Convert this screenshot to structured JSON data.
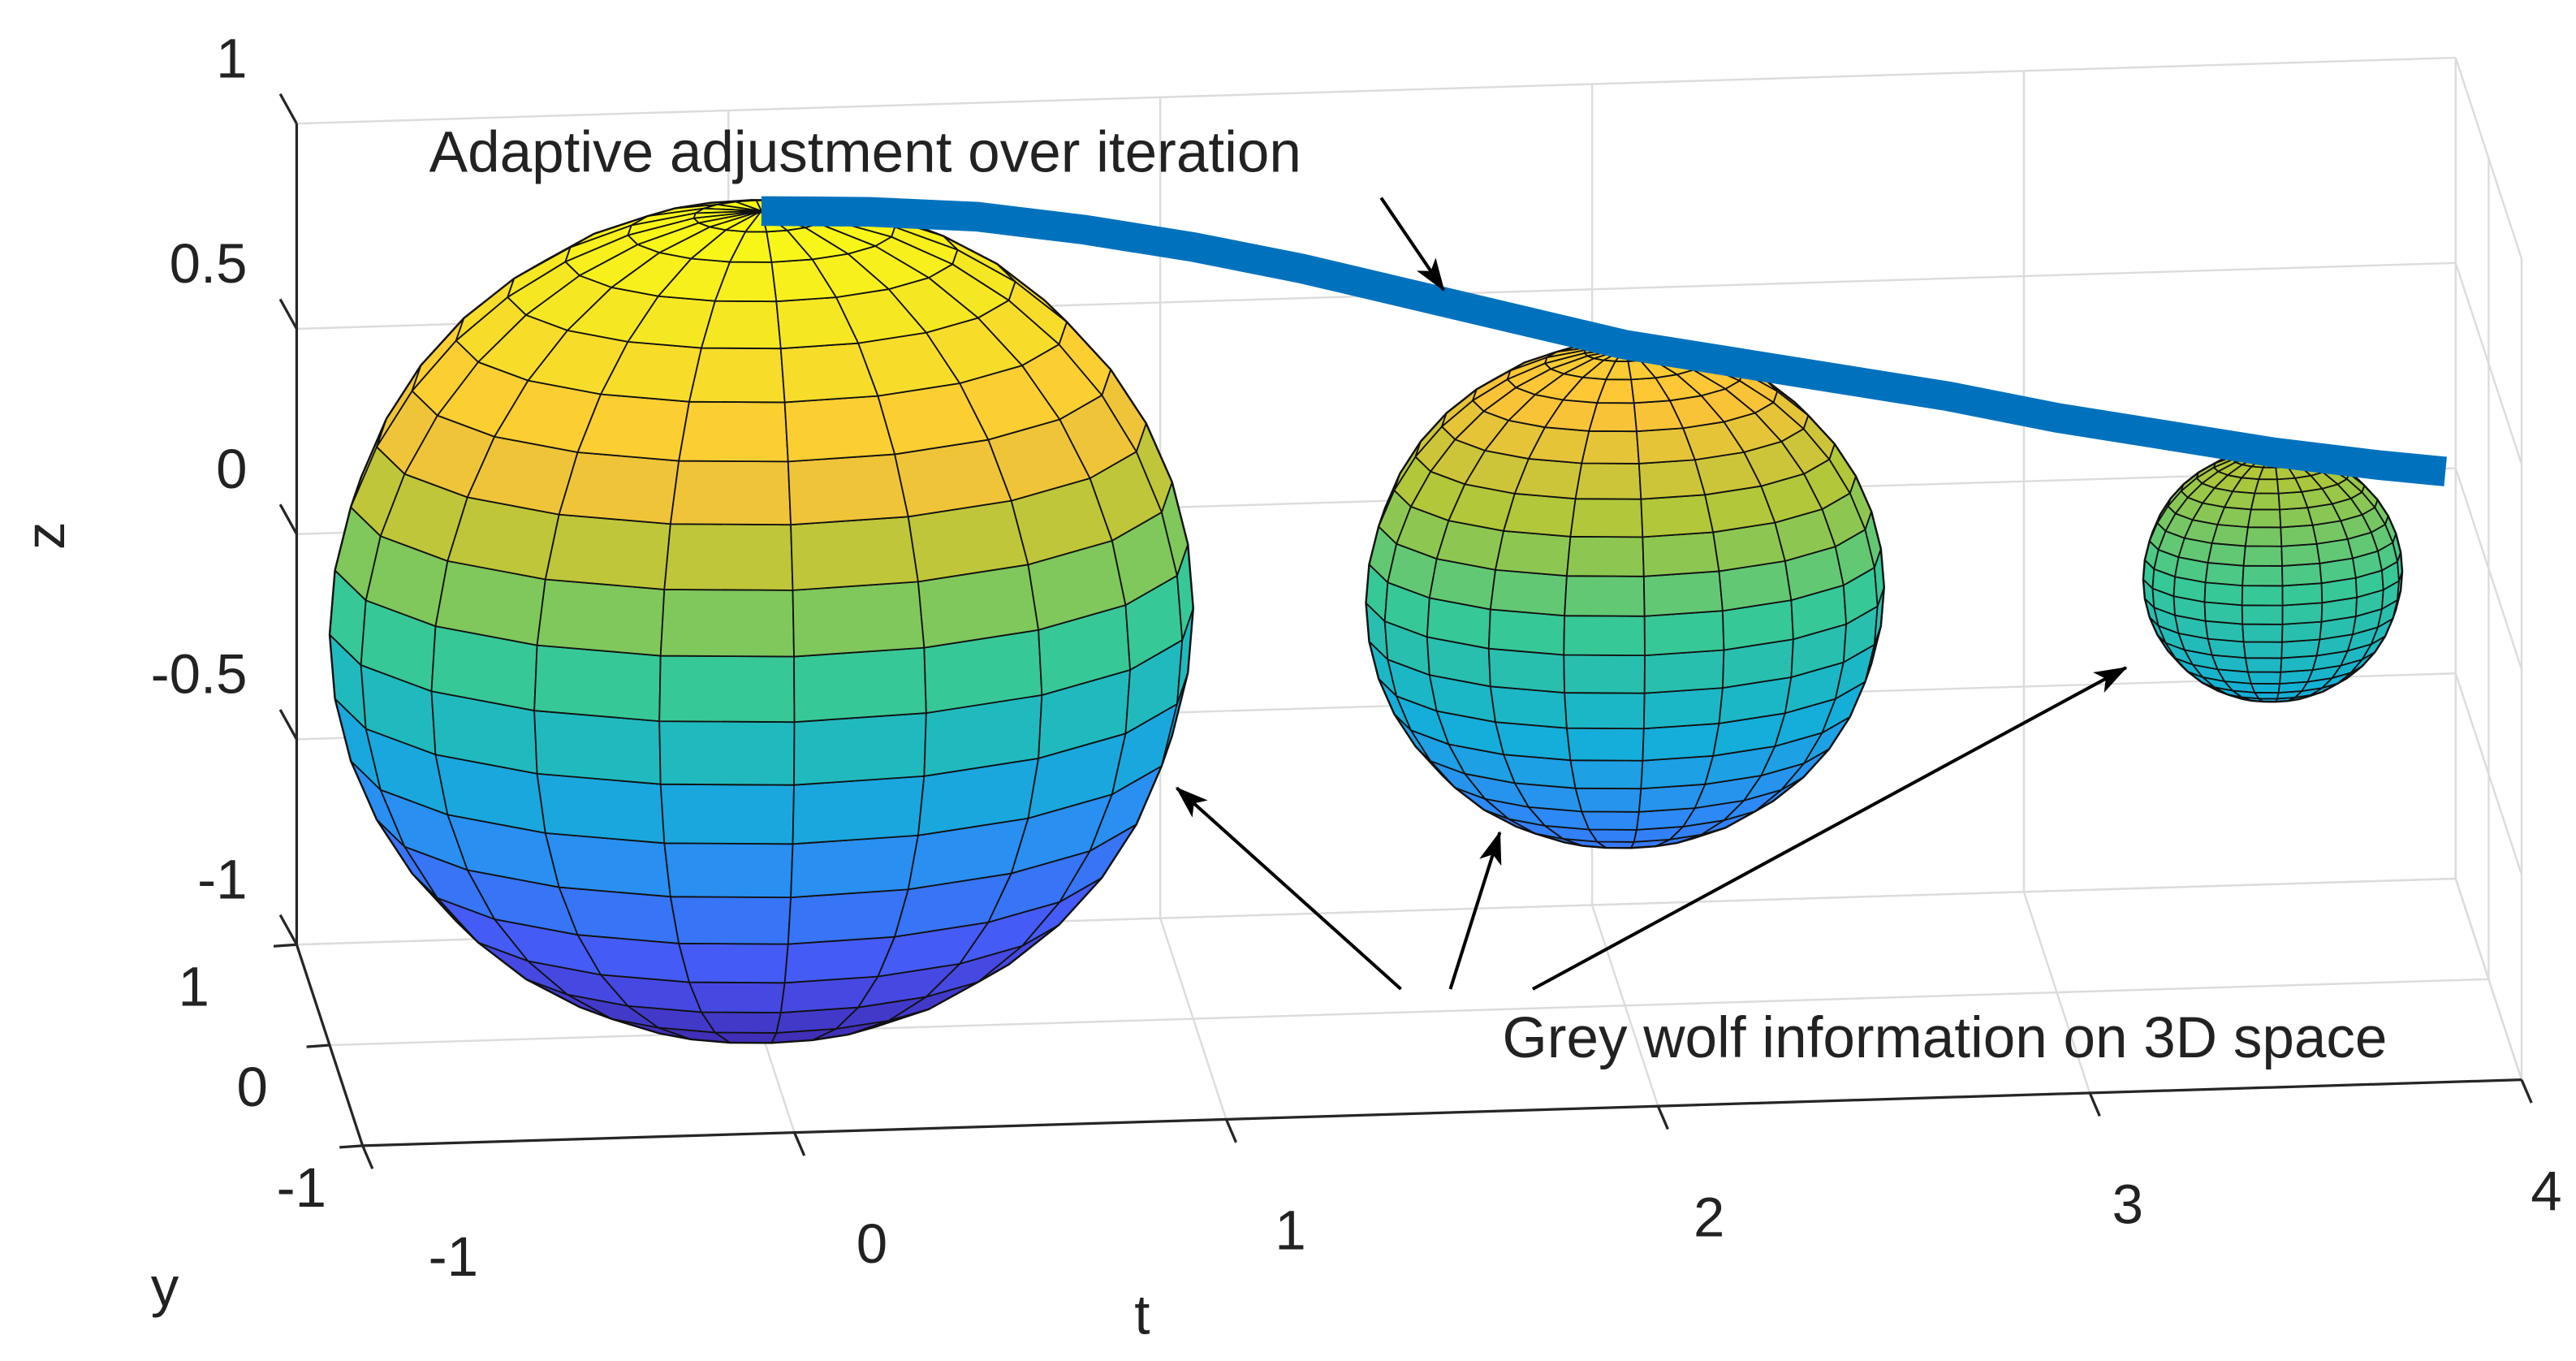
{
  "chart_data": {
    "type": "sphere3d",
    "xlabel": "t",
    "ylabel": "y",
    "zlabel": "z",
    "xlim": [
      -1,
      4
    ],
    "xticks": [
      -1,
      0,
      1,
      2,
      3,
      4
    ],
    "ylim": [
      -1,
      1
    ],
    "yticks": [
      -1,
      0,
      1
    ],
    "zlim": [
      -1,
      1
    ],
    "zticks": [
      -1,
      -0.5,
      0,
      0.5,
      1
    ],
    "grid": true,
    "colormap": [
      "#3e26a8",
      "#4852f4",
      "#2e87f7",
      "#12b1d6",
      "#37c897",
      "#abc739",
      "#fec338",
      "#f5e127",
      "#f9fb15"
    ],
    "spheres": [
      {
        "t": 0,
        "y": 0,
        "z": 0,
        "radius": 1
      },
      {
        "t": 2,
        "y": 0,
        "z": 0,
        "radius": 0.6
      },
      {
        "t": 3.5,
        "y": 0,
        "z": 0,
        "radius": 0.3
      }
    ],
    "curve": {
      "color": "#0072bd",
      "y": 0,
      "x": [
        0,
        0.25,
        0.5,
        0.75,
        1,
        1.25,
        1.5,
        1.75,
        2,
        2.25,
        2.5,
        2.75,
        3,
        3.25,
        3.5,
        3.75,
        3.9
      ],
      "z": [
        1,
        0.99,
        0.97,
        0.93,
        0.88,
        0.82,
        0.75,
        0.68,
        0.61,
        0.56,
        0.51,
        0.46,
        0.4,
        0.35,
        0.3,
        0.26,
        0.24
      ]
    },
    "annotations": [
      {
        "text": "Adaptive adjustment over iteration"
      },
      {
        "text": "Grey wolf information on 3D space"
      }
    ]
  }
}
